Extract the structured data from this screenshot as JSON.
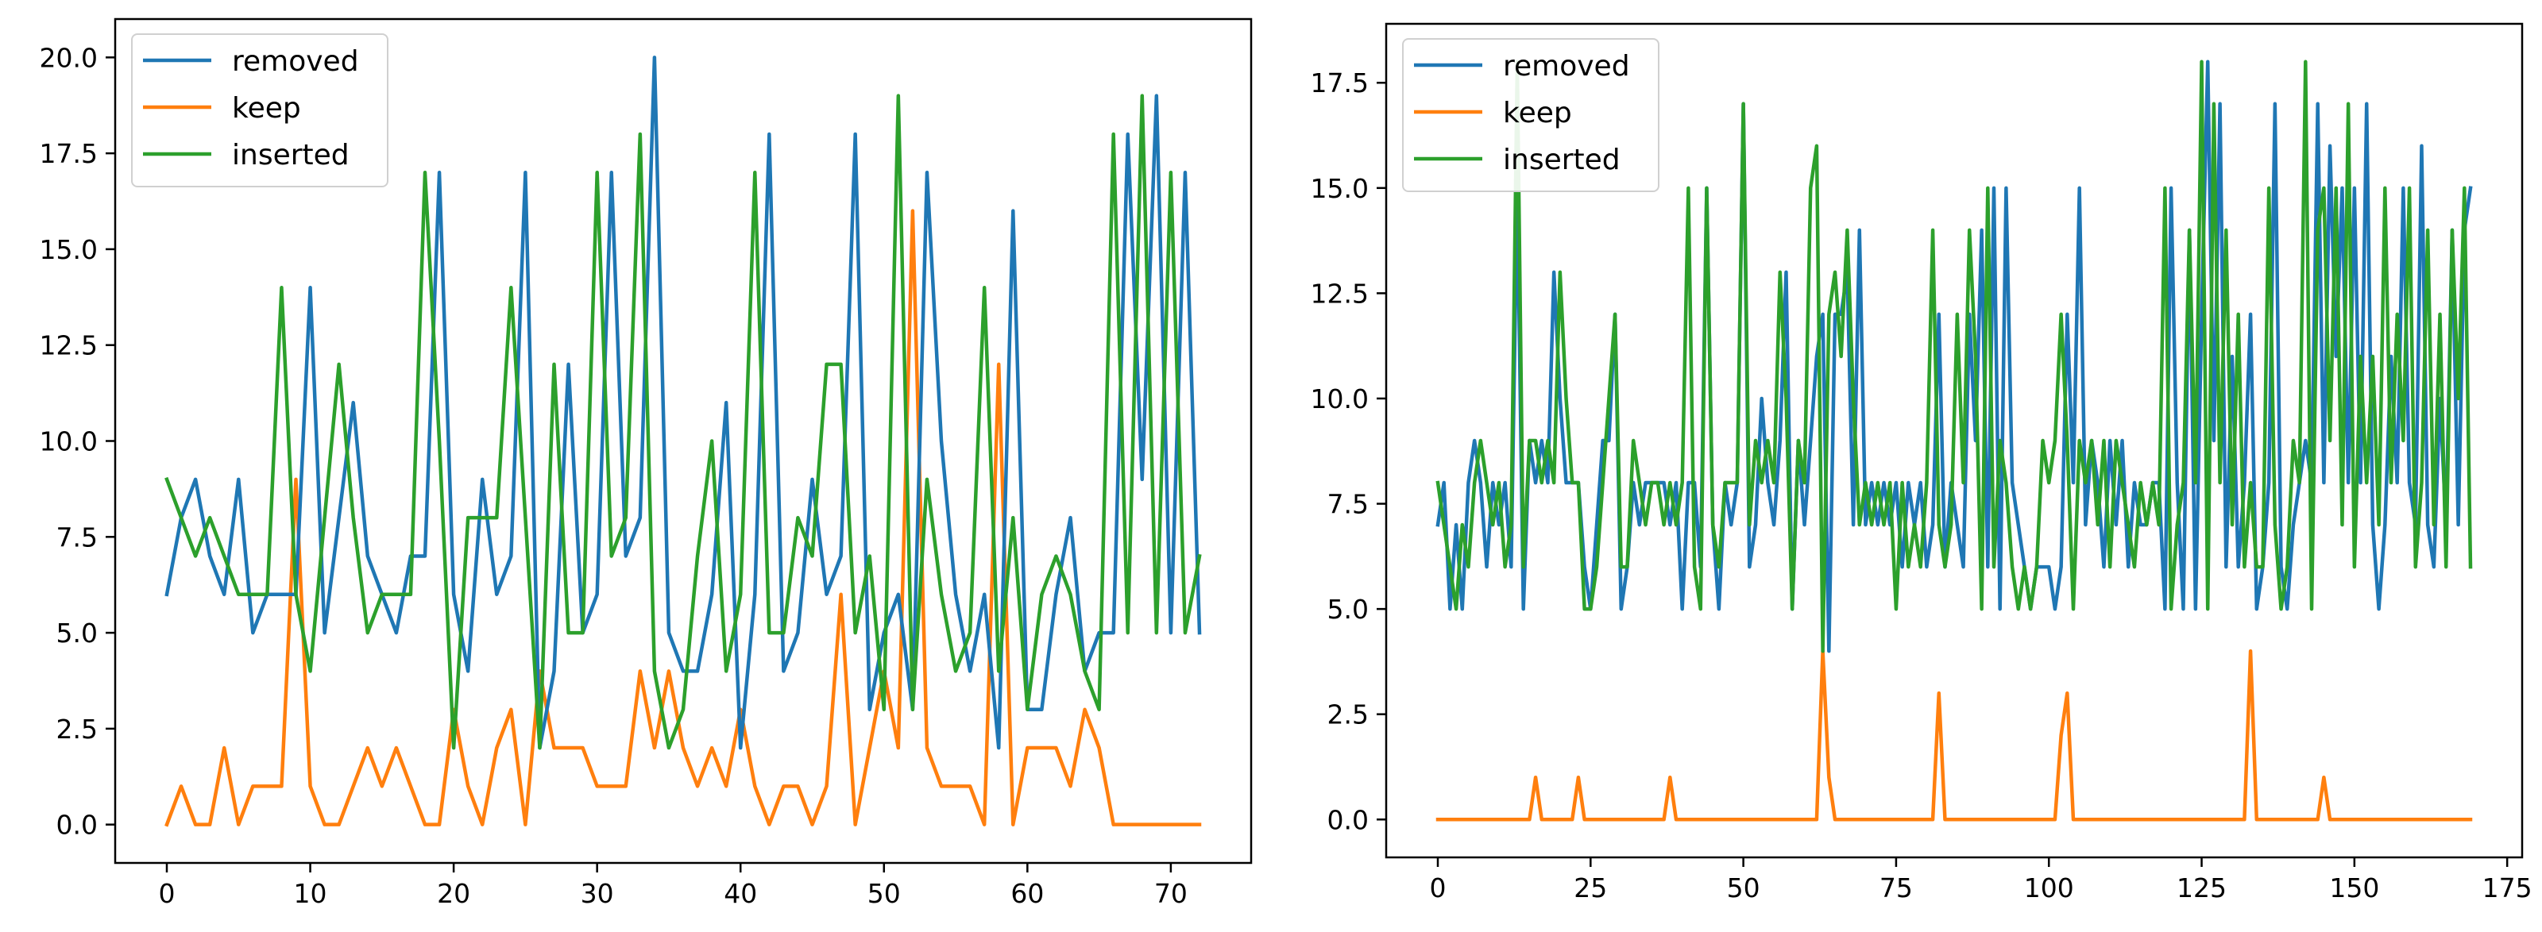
{
  "colors": {
    "removed": "#1f77b4",
    "keep": "#ff7f0e",
    "inserted": "#2ca02c"
  },
  "chart_data": [
    {
      "type": "line",
      "title": "",
      "xlabel": "",
      "ylabel": "",
      "xlim": [
        -3.6,
        75.6
      ],
      "ylim": [
        -1.0,
        21.0
      ],
      "xticks": [
        0,
        10,
        20,
        30,
        40,
        50,
        60,
        70
      ],
      "xtick_labels": [
        "0",
        "10",
        "20",
        "30",
        "40",
        "50",
        "60",
        "70"
      ],
      "yticks": [
        0.0,
        2.5,
        5.0,
        7.5,
        10.0,
        12.5,
        15.0,
        17.5,
        20.0
      ],
      "ytick_labels": [
        "0.0",
        "2.5",
        "5.0",
        "7.5",
        "10.0",
        "12.5",
        "15.0",
        "17.5",
        "20.0"
      ],
      "legend_position": "upper-left",
      "grid": false,
      "series": [
        {
          "name": "removed",
          "color_key": "removed",
          "values": [
            6,
            8,
            9,
            7,
            6,
            9,
            5,
            6,
            6,
            6,
            14,
            5,
            8,
            11,
            7,
            6,
            5,
            7,
            7,
            17,
            6,
            4,
            9,
            6,
            7,
            17,
            2,
            4,
            12,
            5,
            6,
            17,
            7,
            8,
            20,
            5,
            4,
            4,
            6,
            11,
            2,
            6,
            18,
            4,
            5,
            9,
            6,
            7,
            18,
            3,
            5,
            6,
            3,
            17,
            10,
            6,
            4,
            6,
            2,
            16,
            3,
            3,
            6,
            8,
            4,
            5,
            5,
            18,
            9,
            19,
            5,
            17,
            5
          ]
        },
        {
          "name": "keep",
          "color_key": "keep",
          "values": [
            0,
            1,
            0,
            0,
            2,
            0,
            1,
            1,
            1,
            9,
            1,
            0,
            0,
            1,
            2,
            1,
            2,
            1,
            0,
            0,
            3,
            1,
            0,
            2,
            3,
            0,
            4,
            2,
            2,
            2,
            1,
            1,
            1,
            4,
            2,
            4,
            2,
            1,
            2,
            1,
            3,
            1,
            0,
            1,
            1,
            0,
            1,
            6,
            0,
            2,
            4,
            2,
            16,
            2,
            1,
            1,
            1,
            0,
            12,
            0,
            2,
            2,
            2,
            1,
            3,
            2,
            0,
            0,
            0,
            0,
            0,
            0,
            0
          ]
        },
        {
          "name": "inserted",
          "color_key": "inserted",
          "values": [
            9,
            8,
            7,
            8,
            7,
            6,
            6,
            6,
            14,
            6,
            4,
            8,
            12,
            8,
            5,
            6,
            6,
            6,
            17,
            10,
            2,
            8,
            8,
            8,
            14,
            8,
            2,
            12,
            5,
            5,
            17,
            7,
            8,
            18,
            4,
            2,
            3,
            7,
            10,
            4,
            6,
            17,
            5,
            5,
            8,
            7,
            12,
            12,
            5,
            7,
            3,
            19,
            3,
            9,
            6,
            4,
            5,
            14,
            4,
            8,
            3,
            6,
            7,
            6,
            4,
            3,
            18,
            5,
            19,
            5,
            17,
            5,
            7
          ]
        }
      ]
    },
    {
      "type": "line",
      "title": "",
      "xlabel": "",
      "ylabel": "",
      "xlim": [
        -8.45,
        177.45
      ],
      "ylim": [
        -0.9,
        18.9
      ],
      "xticks": [
        0,
        25,
        50,
        75,
        100,
        125,
        150,
        175
      ],
      "xtick_labels": [
        "0",
        "25",
        "50",
        "75",
        "100",
        "125",
        "150",
        "175"
      ],
      "yticks": [
        0.0,
        2.5,
        5.0,
        7.5,
        10.0,
        12.5,
        15.0,
        17.5
      ],
      "ytick_labels": [
        "0.0",
        "2.5",
        "5.0",
        "7.5",
        "10.0",
        "12.5",
        "15.0",
        "17.5"
      ],
      "legend_position": "upper-left",
      "grid": false,
      "series": [
        {
          "name": "removed",
          "color_key": "removed",
          "values": [
            7,
            8,
            5,
            7,
            5,
            8,
            9,
            8,
            6,
            8,
            7,
            8,
            6,
            15,
            5,
            9,
            8,
            9,
            8,
            13,
            10,
            8,
            8,
            8,
            6,
            5,
            7,
            9,
            9,
            12,
            5,
            6,
            8,
            7,
            8,
            8,
            8,
            8,
            7,
            8,
            5,
            8,
            8,
            6,
            15,
            7,
            5,
            8,
            7,
            8,
            17,
            6,
            7,
            10,
            8,
            7,
            9,
            13,
            5,
            9,
            7,
            9,
            11,
            12,
            4,
            12,
            12,
            13,
            7,
            14,
            7,
            8,
            7,
            8,
            7,
            8,
            6,
            8,
            7,
            8,
            6,
            7,
            12,
            6,
            8,
            7,
            6,
            12,
            9,
            14,
            6,
            15,
            5,
            15,
            8,
            7,
            6,
            5,
            6,
            6,
            6,
            5,
            6,
            12,
            8,
            15,
            7,
            9,
            8,
            6,
            9,
            7,
            9,
            6,
            8,
            7,
            7,
            8,
            8,
            5,
            15,
            8,
            5,
            14,
            5,
            12,
            18,
            9,
            17,
            6,
            11,
            6,
            8,
            12,
            5,
            6,
            8,
            17,
            6,
            5,
            7,
            8,
            9,
            8,
            17,
            8,
            16,
            11,
            15,
            8,
            15,
            8,
            17,
            7,
            5,
            7,
            11,
            8,
            15,
            8,
            7,
            16,
            7,
            6,
            10,
            7,
            14,
            7,
            14,
            15
          ]
        },
        {
          "name": "keep",
          "color_key": "keep",
          "values": [
            0,
            0,
            0,
            0,
            0,
            0,
            0,
            0,
            0,
            0,
            0,
            0,
            0,
            0,
            0,
            0,
            1,
            0,
            0,
            0,
            0,
            0,
            0,
            1,
            0,
            0,
            0,
            0,
            0,
            0,
            0,
            0,
            0,
            0,
            0,
            0,
            0,
            0,
            1,
            0,
            0,
            0,
            0,
            0,
            0,
            0,
            0,
            0,
            0,
            0,
            0,
            0,
            0,
            0,
            0,
            0,
            0,
            0,
            0,
            0,
            0,
            0,
            0,
            4,
            1,
            0,
            0,
            0,
            0,
            0,
            0,
            0,
            0,
            0,
            0,
            0,
            0,
            0,
            0,
            0,
            0,
            0,
            3,
            0,
            0,
            0,
            0,
            0,
            0,
            0,
            0,
            0,
            0,
            0,
            0,
            0,
            0,
            0,
            0,
            0,
            0,
            0,
            2,
            3,
            0,
            0,
            0,
            0,
            0,
            0,
            0,
            0,
            0,
            0,
            0,
            0,
            0,
            0,
            0,
            0,
            0,
            0,
            0,
            0,
            0,
            0,
            0,
            0,
            0,
            0,
            0,
            0,
            0,
            4,
            0,
            0,
            0,
            0,
            0,
            0,
            0,
            0,
            0,
            0,
            0,
            1,
            0,
            0,
            0,
            0,
            0,
            0,
            0,
            0,
            0,
            0,
            0,
            0,
            0,
            0,
            0,
            0,
            0,
            0,
            0,
            0,
            0,
            0,
            0,
            0
          ]
        },
        {
          "name": "inserted",
          "color_key": "inserted",
          "values": [
            8,
            7,
            6,
            5,
            7,
            6,
            8,
            9,
            8,
            7,
            8,
            6,
            7,
            18,
            6,
            9,
            9,
            8,
            9,
            8,
            13,
            10,
            8,
            8,
            5,
            5,
            6,
            8,
            10,
            12,
            6,
            6,
            9,
            8,
            7,
            8,
            8,
            7,
            8,
            7,
            8,
            15,
            6,
            5,
            15,
            7,
            6,
            8,
            8,
            8,
            17,
            7,
            9,
            8,
            9,
            8,
            13,
            10,
            5,
            9,
            8,
            15,
            16,
            4,
            12,
            13,
            11,
            14,
            10,
            7,
            8,
            7,
            8,
            7,
            8,
            5,
            8,
            6,
            7,
            6,
            8,
            14,
            7,
            6,
            7,
            12,
            8,
            14,
            11,
            5,
            15,
            6,
            9,
            8,
            6,
            5,
            6,
            5,
            6,
            9,
            8,
            9,
            12,
            9,
            5,
            9,
            8,
            9,
            7,
            9,
            6,
            9,
            8,
            7,
            6,
            8,
            7,
            8,
            7,
            15,
            5,
            7,
            8,
            14,
            8,
            18,
            5,
            17,
            8,
            14,
            7,
            12,
            6,
            8,
            6,
            6,
            15,
            7,
            5,
            6,
            9,
            8,
            18,
            5,
            14,
            15,
            9,
            15,
            7,
            17,
            6,
            11,
            8,
            11,
            7,
            15,
            8,
            12,
            9,
            15,
            6,
            8,
            14,
            7,
            12,
            6,
            14,
            10,
            15,
            6
          ]
        }
      ]
    }
  ]
}
